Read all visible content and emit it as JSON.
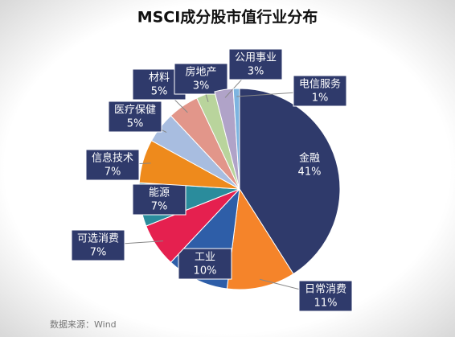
{
  "chart_data": {
    "type": "pie",
    "title": "MSCI成分股市值行业分布",
    "source": "数据来源：Wind",
    "categories": [
      "金融",
      "日常消费",
      "工业",
      "可选消费",
      "能源",
      "信息技术",
      "医疗保健",
      "材料",
      "房地产",
      "公用事业",
      "电信服务"
    ],
    "values": [
      41,
      11,
      10,
      7,
      7,
      7,
      5,
      5,
      3,
      3,
      1
    ],
    "value_labels": [
      "41%",
      "11%",
      "10%",
      "7%",
      "7%",
      "7%",
      "5%",
      "5%",
      "3%",
      "3%",
      "1%"
    ],
    "colors": [
      "#2f3a6b",
      "#f5842a",
      "#2e5ea8",
      "#e5204f",
      "#2a8c9c",
      "#ee8a1c",
      "#a8bde0",
      "#e2968a",
      "#b9d49c",
      "#b0a3c8",
      "#7db4e0"
    ]
  }
}
